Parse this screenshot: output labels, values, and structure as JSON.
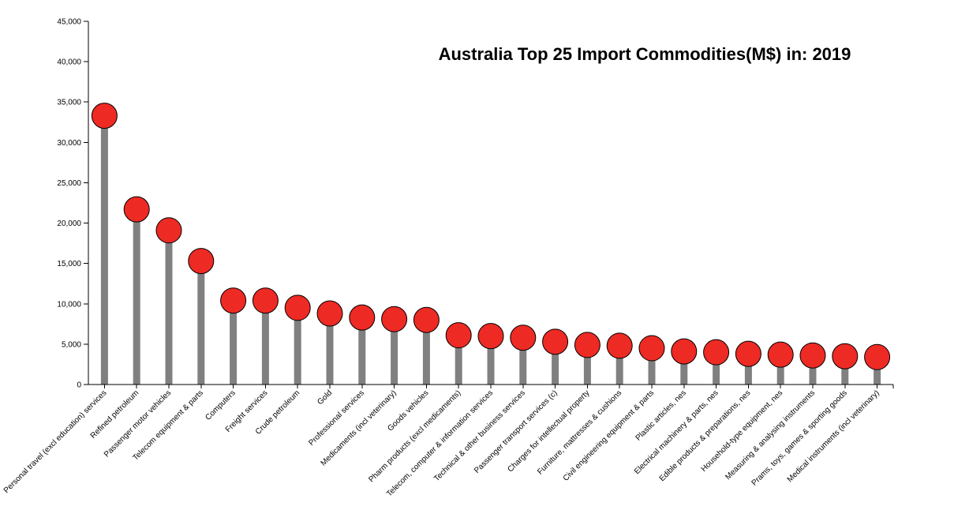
{
  "chart_data": {
    "type": "lollipop",
    "title": "Australia Top 25 Import Commodities(M$) in: 2019",
    "xlabel": "",
    "ylabel": "",
    "ylim": [
      0,
      45000
    ],
    "y_ticks": [
      0,
      5000,
      10000,
      15000,
      20000,
      25000,
      30000,
      35000,
      40000,
      45000
    ],
    "y_tick_labels": [
      "0",
      "5,000",
      "10,000",
      "15,000",
      "20,000",
      "25,000",
      "30,000",
      "35,000",
      "40,000",
      "45,000"
    ],
    "grid": false,
    "legend": "none",
    "colors": {
      "stem": "#808080",
      "point": "#ee2a24",
      "point_stroke": "#000000"
    },
    "categories": [
      "Personal travel (excl education) services",
      "Refined petroleum",
      "Passenger motor vehicles",
      "Telecom equipment & parts",
      "Computers",
      "Freight services",
      "Crude petroleum",
      "Gold",
      "Professional services",
      "Medicaments (incl veterinary)",
      "Goods vehicles",
      "Pharm products (excl medicaments)",
      "Telecom, computer & information services",
      "Technical & other business services",
      "Passenger transport services (c)",
      "Charges for intellectual property",
      "Furniture, mattresses & cushions",
      "Civil engineering equipment & parts",
      "Plastic articles, nes",
      "Electrical machinery & parts, nes",
      "Edible products & preparations, nes",
      "Household-type equipment, nes",
      "Measuring & analysing instruments",
      "Prams, toys, games & sporting goods",
      "Medical instruments (incl veterinary)"
    ],
    "values": [
      33300,
      21700,
      19100,
      15300,
      10400,
      10400,
      9500,
      8800,
      8300,
      8100,
      8000,
      6100,
      6000,
      5800,
      5300,
      4900,
      4800,
      4500,
      4100,
      4000,
      3800,
      3700,
      3600,
      3500,
      3400
    ]
  }
}
